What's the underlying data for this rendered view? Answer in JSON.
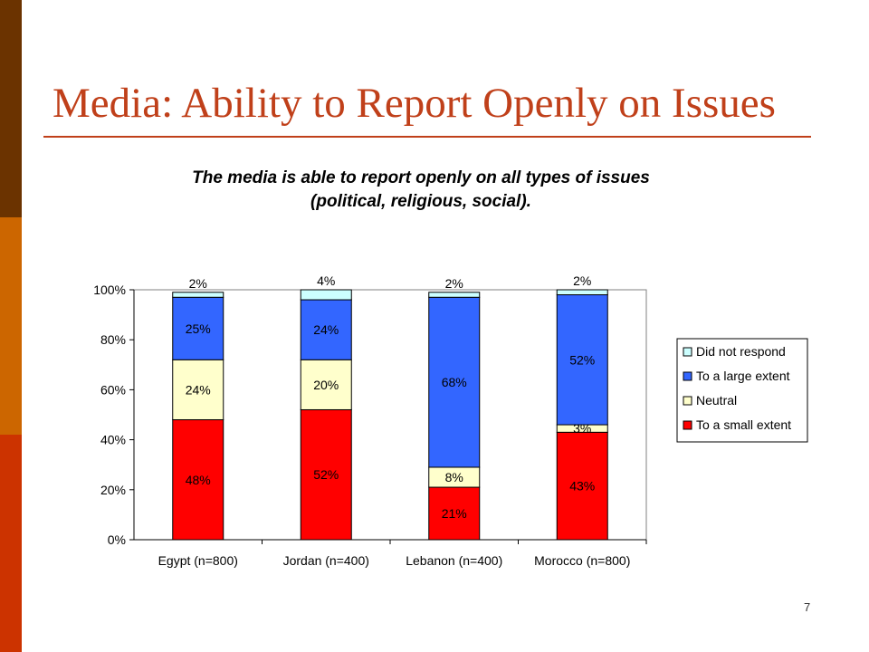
{
  "slide": {
    "title": "Media: Ability to Report Openly on Issues",
    "page_number": "7",
    "colors": {
      "sidebar_top": "#6b3300",
      "sidebar_mid": "#cc6600",
      "sidebar_bottom": "#cc3300",
      "title": "#c0401a"
    }
  },
  "chart_data": {
    "type": "bar",
    "stacked": true,
    "title_lines": [
      "The media is able to report openly on all types of issues",
      "(political, religious, social)."
    ],
    "categories": [
      "Egypt (n=800)",
      "Jordan (n=400)",
      "Lebanon (n=400)",
      "Morocco (n=800)"
    ],
    "series": [
      {
        "name": "To a small extent",
        "values": [
          48,
          52,
          21,
          43
        ],
        "labels": [
          "48%",
          "52%",
          "21%",
          "43%"
        ],
        "color": "#ff0000"
      },
      {
        "name": "Neutral",
        "values": [
          24,
          20,
          8,
          3
        ],
        "labels": [
          "24%",
          "20%",
          "8%",
          "3%"
        ],
        "color": "#ffffcc"
      },
      {
        "name": "To a large extent",
        "values": [
          25,
          24,
          68,
          52
        ],
        "labels": [
          "25%",
          "24%",
          "68%",
          "52%"
        ],
        "color": "#3366ff"
      },
      {
        "name": "Did not respond",
        "values": [
          2,
          4,
          2,
          2
        ],
        "labels": [
          "2%",
          "4%",
          "2%",
          "2%"
        ],
        "color": "#ccffff"
      }
    ],
    "legend_order": [
      "Did not respond",
      "To a large extent",
      "Neutral",
      "To a small extent"
    ],
    "y_ticks": [
      "0%",
      "20%",
      "40%",
      "60%",
      "80%",
      "100%"
    ],
    "ylim": [
      0,
      100
    ],
    "legend_position": "right",
    "grid": false
  }
}
